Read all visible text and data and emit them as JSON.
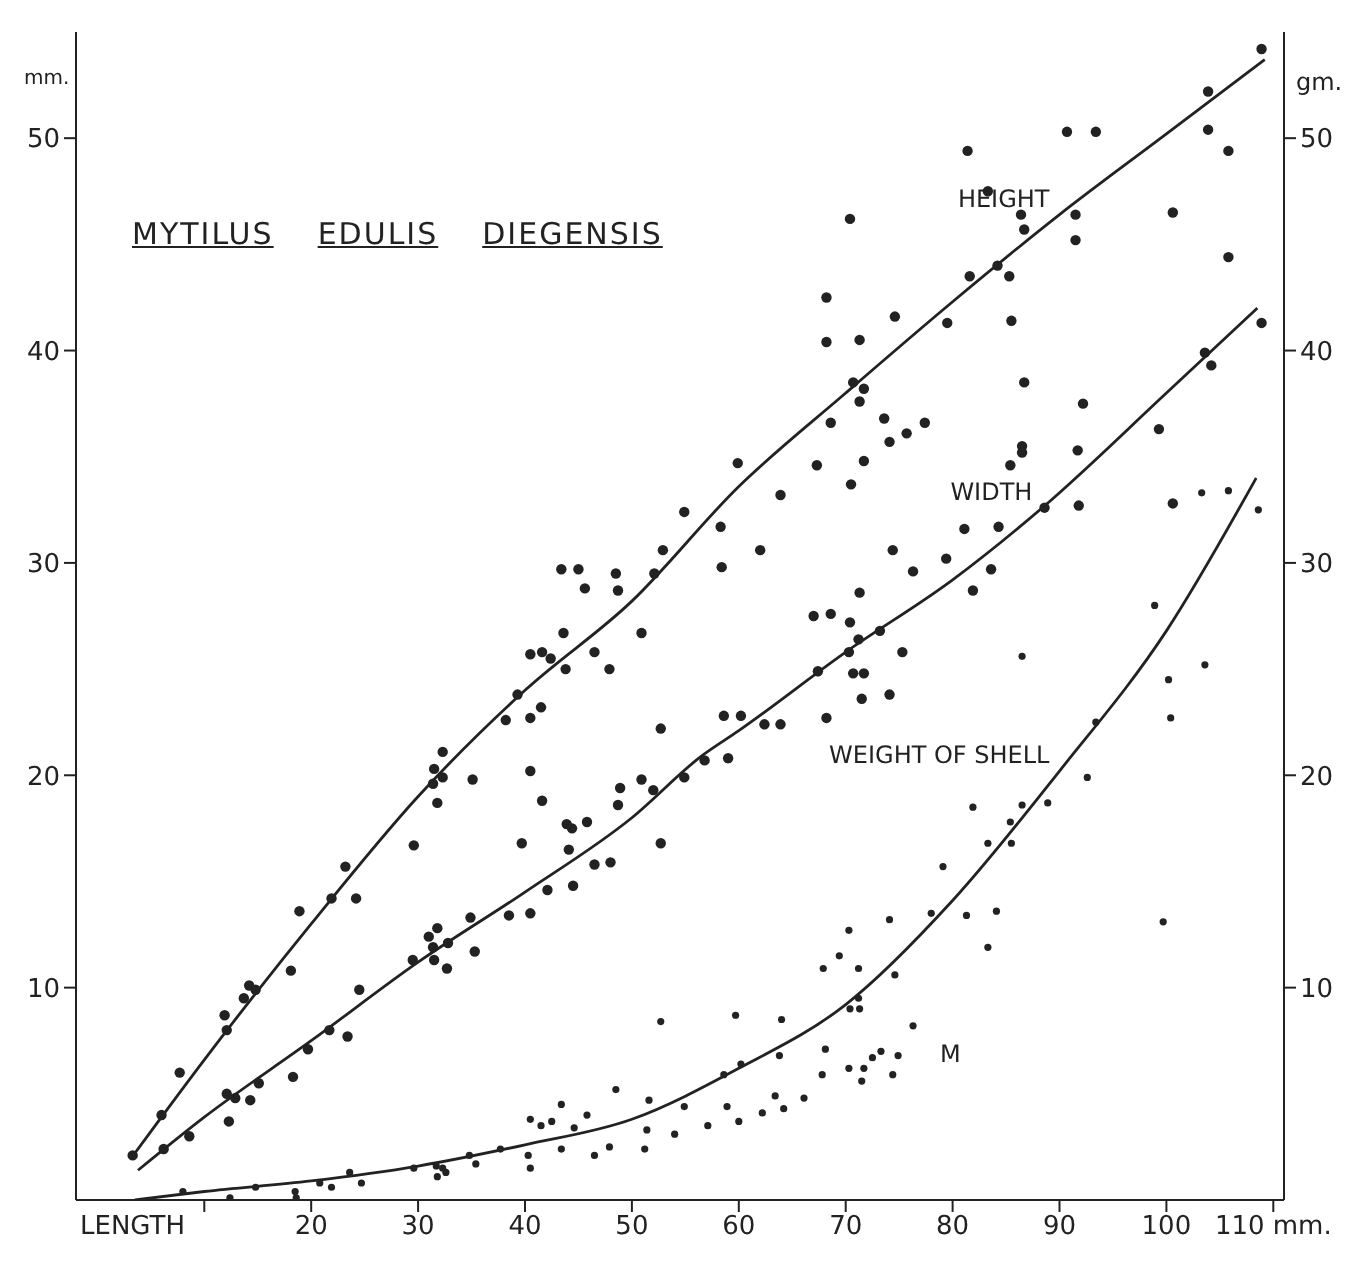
{
  "chart_data": {
    "type": "scatter",
    "title": "MYTILUS EDULIS DIEGENSIS",
    "xlabel": "LENGTH",
    "ylabel": "mm.",
    "y2label": "gm.",
    "xlim": [
      -2,
      111
    ],
    "xticks": [
      {
        "value": 10,
        "label": null
      },
      20,
      30,
      40,
      50,
      60,
      70,
      80,
      90,
      100,
      {
        "value": 110,
        "label": "110 mm."
      }
    ],
    "ylim": [
      0,
      55
    ],
    "yticks": [
      10,
      20,
      30,
      40,
      50
    ],
    "y2lim": [
      0,
      55
    ],
    "y2ticks": [
      10,
      20,
      30,
      40,
      50
    ],
    "grid": false,
    "legend": false,
    "marker": "circle",
    "annotations": [
      "M"
    ],
    "series": [
      {
        "color": "#222222",
        "x": [
          3.3,
          6.0,
          7.7,
          11.9,
          12.1,
          13.7,
          14.2,
          14.8,
          18.1,
          18.9,
          21.9,
          23.2,
          24.2,
          29.6,
          31.4,
          31.5,
          31.8,
          32.3,
          32.3,
          35.1,
          38.2,
          39.3,
          40.5,
          41.5,
          41.6,
          42.4,
          43.6,
          43.8,
          46.5,
          47.9,
          50.9,
          43.4,
          45.0,
          45.6,
          48.5,
          48.7,
          52.1,
          52.9,
          54.9,
          58.3,
          58.4,
          59.9,
          62.0,
          63.9,
          67.3,
          68.6,
          68.2,
          68.2,
          70.5,
          70.7,
          71.3,
          71.3,
          71.7,
          71.7,
          70.4,
          73.6,
          74.1,
          74.6,
          75.7,
          77.4,
          79.5,
          81.4,
          81.6,
          83.3,
          84.2,
          85.3,
          85.5,
          86.4,
          86.7,
          90.7,
          93.4,
          91.5,
          91.5,
          100.6,
          103.9,
          103.9,
          105.8,
          108.9
        ],
        "values": [
          2.1,
          4.0,
          6.0,
          8.7,
          8.0,
          9.5,
          10.1,
          9.9,
          10.8,
          13.6,
          14.2,
          15.7,
          14.2,
          16.7,
          19.6,
          20.3,
          18.7,
          21.1,
          19.9,
          19.8,
          22.6,
          23.8,
          25.7,
          23.2,
          25.8,
          25.5,
          26.7,
          25.0,
          25.8,
          25.0,
          26.7,
          29.7,
          29.7,
          28.8,
          29.5,
          28.7,
          29.5,
          30.6,
          32.4,
          31.7,
          29.8,
          34.7,
          30.6,
          33.2,
          34.6,
          36.6,
          40.4,
          42.5,
          33.7,
          38.5,
          40.5,
          37.6,
          38.2,
          34.8,
          46.2,
          36.8,
          35.7,
          41.6,
          36.1,
          36.6,
          41.3,
          49.4,
          43.5,
          47.5,
          44.0,
          43.5,
          41.4,
          46.4,
          45.7,
          50.3,
          50.3,
          46.4,
          45.2,
          46.5,
          52.2,
          50.4,
          49.4,
          54.2
        ]
      },
      {
        "type": "line",
        "name": "HEIGHT",
        "marker": "none",
        "color": "#222222",
        "x": [
          3.5,
          10,
          20,
          30,
          40,
          50,
          60,
          70,
          80,
          90,
          100,
          109.2
        ],
        "values": [
          2.2,
          6.6,
          13.0,
          19.0,
          24.0,
          28.2,
          33.6,
          38.0,
          42.3,
          46.4,
          50.2,
          53.7
        ]
      },
      {
        "color": "#222222",
        "x": [
          6.2,
          8.6,
          12.1,
          12.3,
          12.9,
          14.3,
          15.1,
          18.3,
          19.7,
          21.7,
          23.4,
          24.5,
          29.5,
          31.0,
          31.4,
          31.8,
          31.5,
          32.7,
          32.8,
          34.9,
          35.3,
          38.5,
          39.7,
          40.5,
          40.5,
          40.5,
          41.6,
          42.1,
          43.9,
          44.1,
          44.4,
          44.5,
          45.8,
          46.5,
          48.0,
          48.7,
          48.9,
          50.9,
          52.0,
          52.7,
          52.7,
          54.9,
          56.8,
          59.0,
          58.6,
          60.2,
          62.4,
          63.9,
          68.2,
          67.4,
          67.0,
          68.6,
          70.4,
          70.3,
          71.2,
          70.7,
          71.7,
          71.5,
          73.2,
          74.1,
          75.3,
          71.3,
          74.4,
          76.3,
          79.4,
          81.1,
          81.9,
          83.6,
          84.3,
          85.4,
          86.5,
          86.5,
          86.7,
          88.6,
          91.8,
          91.7,
          92.2,
          99.3,
          100.6,
          103.6,
          104.2,
          105.8,
          108.9
        ],
        "values": [
          2.4,
          3.0,
          5.0,
          3.7,
          4.8,
          4.7,
          5.5,
          5.8,
          7.1,
          8.0,
          7.7,
          9.9,
          11.3,
          12.4,
          11.9,
          12.8,
          11.3,
          10.9,
          12.1,
          13.3,
          11.7,
          13.4,
          16.8,
          20.2,
          22.7,
          13.5,
          18.8,
          14.6,
          17.7,
          16.5,
          17.5,
          14.8,
          17.8,
          15.8,
          15.9,
          18.6,
          19.4,
          19.8,
          19.3,
          16.8,
          22.2,
          19.9,
          20.7,
          20.8,
          22.8,
          22.8,
          22.4,
          22.4,
          22.7,
          24.9,
          27.5,
          27.6,
          27.2,
          25.8,
          26.4,
          24.8,
          24.8,
          23.6,
          26.8,
          23.8,
          25.8,
          28.6,
          30.6,
          29.6,
          30.2,
          31.6,
          28.7,
          29.7,
          31.7,
          34.6,
          35.5,
          35.2,
          38.5,
          32.6,
          32.7,
          35.3,
          37.5,
          36.3,
          32.8,
          39.9,
          39.3,
          44.4,
          41.3
        ]
      },
      {
        "type": "line",
        "name": "WIDTH",
        "marker": "none",
        "color": "#222222",
        "x": [
          3.8,
          10,
          20,
          30,
          40,
          50,
          56.5,
          60,
          70,
          80,
          88.4,
          100,
          108.5
        ],
        "values": [
          1.4,
          3.9,
          7.5,
          11.2,
          14.5,
          18.0,
          20.9,
          22.1,
          25.8,
          29.2,
          32.6,
          38.0,
          42.0
        ]
      },
      {
        "axis": "y2",
        "color": "#222222",
        "x": [
          8.0,
          12.4,
          14.8,
          18.6,
          18.5,
          20.8,
          21.9,
          23.6,
          24.7,
          29.6,
          31.7,
          31.8,
          32.3,
          32.6,
          34.8,
          35.4,
          37.7,
          40.3,
          40.5,
          40.5,
          41.5,
          42.5,
          43.4,
          43.4,
          44.6,
          45.8,
          46.5,
          47.9,
          48.5,
          51.2,
          51.4,
          51.6,
          52.7,
          54.0,
          54.9,
          57.1,
          58.6,
          58.9,
          59.7,
          60.0,
          60.2,
          62.2,
          63.4,
          64.0,
          63.8,
          64.2,
          66.1,
          67.8,
          68.1,
          67.9,
          69.4,
          70.3,
          70.3,
          70.4,
          71.2,
          71.2,
          71.3,
          71.5,
          71.7,
          72.5,
          73.3,
          74.1,
          74.4,
          74.6,
          74.9,
          76.3,
          78.0,
          79.1,
          81.3,
          81.9,
          83.3,
          83.3,
          84.1,
          85.4,
          85.5,
          86.5,
          86.5,
          88.9,
          92.6,
          93.4,
          98.9,
          99.7,
          100.2,
          100.4,
          103.6,
          103.3,
          105.8,
          108.6
        ],
        "values": [
          0.4,
          0.1,
          0.6,
          0.1,
          0.4,
          0.8,
          0.6,
          1.3,
          0.8,
          1.5,
          1.6,
          1.1,
          1.5,
          1.3,
          2.1,
          1.7,
          2.4,
          2.1,
          1.5,
          3.8,
          3.5,
          3.7,
          4.5,
          2.4,
          3.4,
          4.0,
          2.1,
          2.5,
          5.2,
          2.4,
          3.3,
          4.7,
          8.4,
          3.1,
          4.4,
          3.5,
          5.9,
          4.4,
          8.7,
          3.7,
          6.4,
          4.1,
          4.9,
          8.5,
          6.8,
          4.3,
          4.8,
          5.9,
          7.1,
          10.9,
          11.5,
          12.7,
          6.2,
          9.0,
          10.9,
          9.5,
          9.0,
          5.6,
          6.2,
          6.7,
          7.0,
          13.2,
          5.9,
          10.6,
          6.8,
          8.2,
          13.5,
          15.7,
          13.4,
          18.5,
          16.8,
          11.9,
          13.6,
          17.8,
          16.8,
          18.6,
          25.6,
          18.7,
          19.9,
          22.5,
          28.0,
          13.1,
          24.5,
          22.7,
          25.2,
          33.3,
          33.4,
          32.5
        ]
      },
      {
        "type": "line",
        "name": "WEIGHT OF SHELL",
        "marker": "none",
        "axis": "y2",
        "color": "#222222",
        "x": [
          3.5,
          10,
          20,
          30,
          40,
          50,
          60,
          70,
          80,
          90,
          100,
          108.4
        ],
        "values": [
          0,
          0.4,
          0.9,
          1.6,
          2.6,
          3.8,
          6.2,
          9.2,
          14.1,
          20.2,
          26.8,
          34.0
        ]
      }
    ]
  }
}
